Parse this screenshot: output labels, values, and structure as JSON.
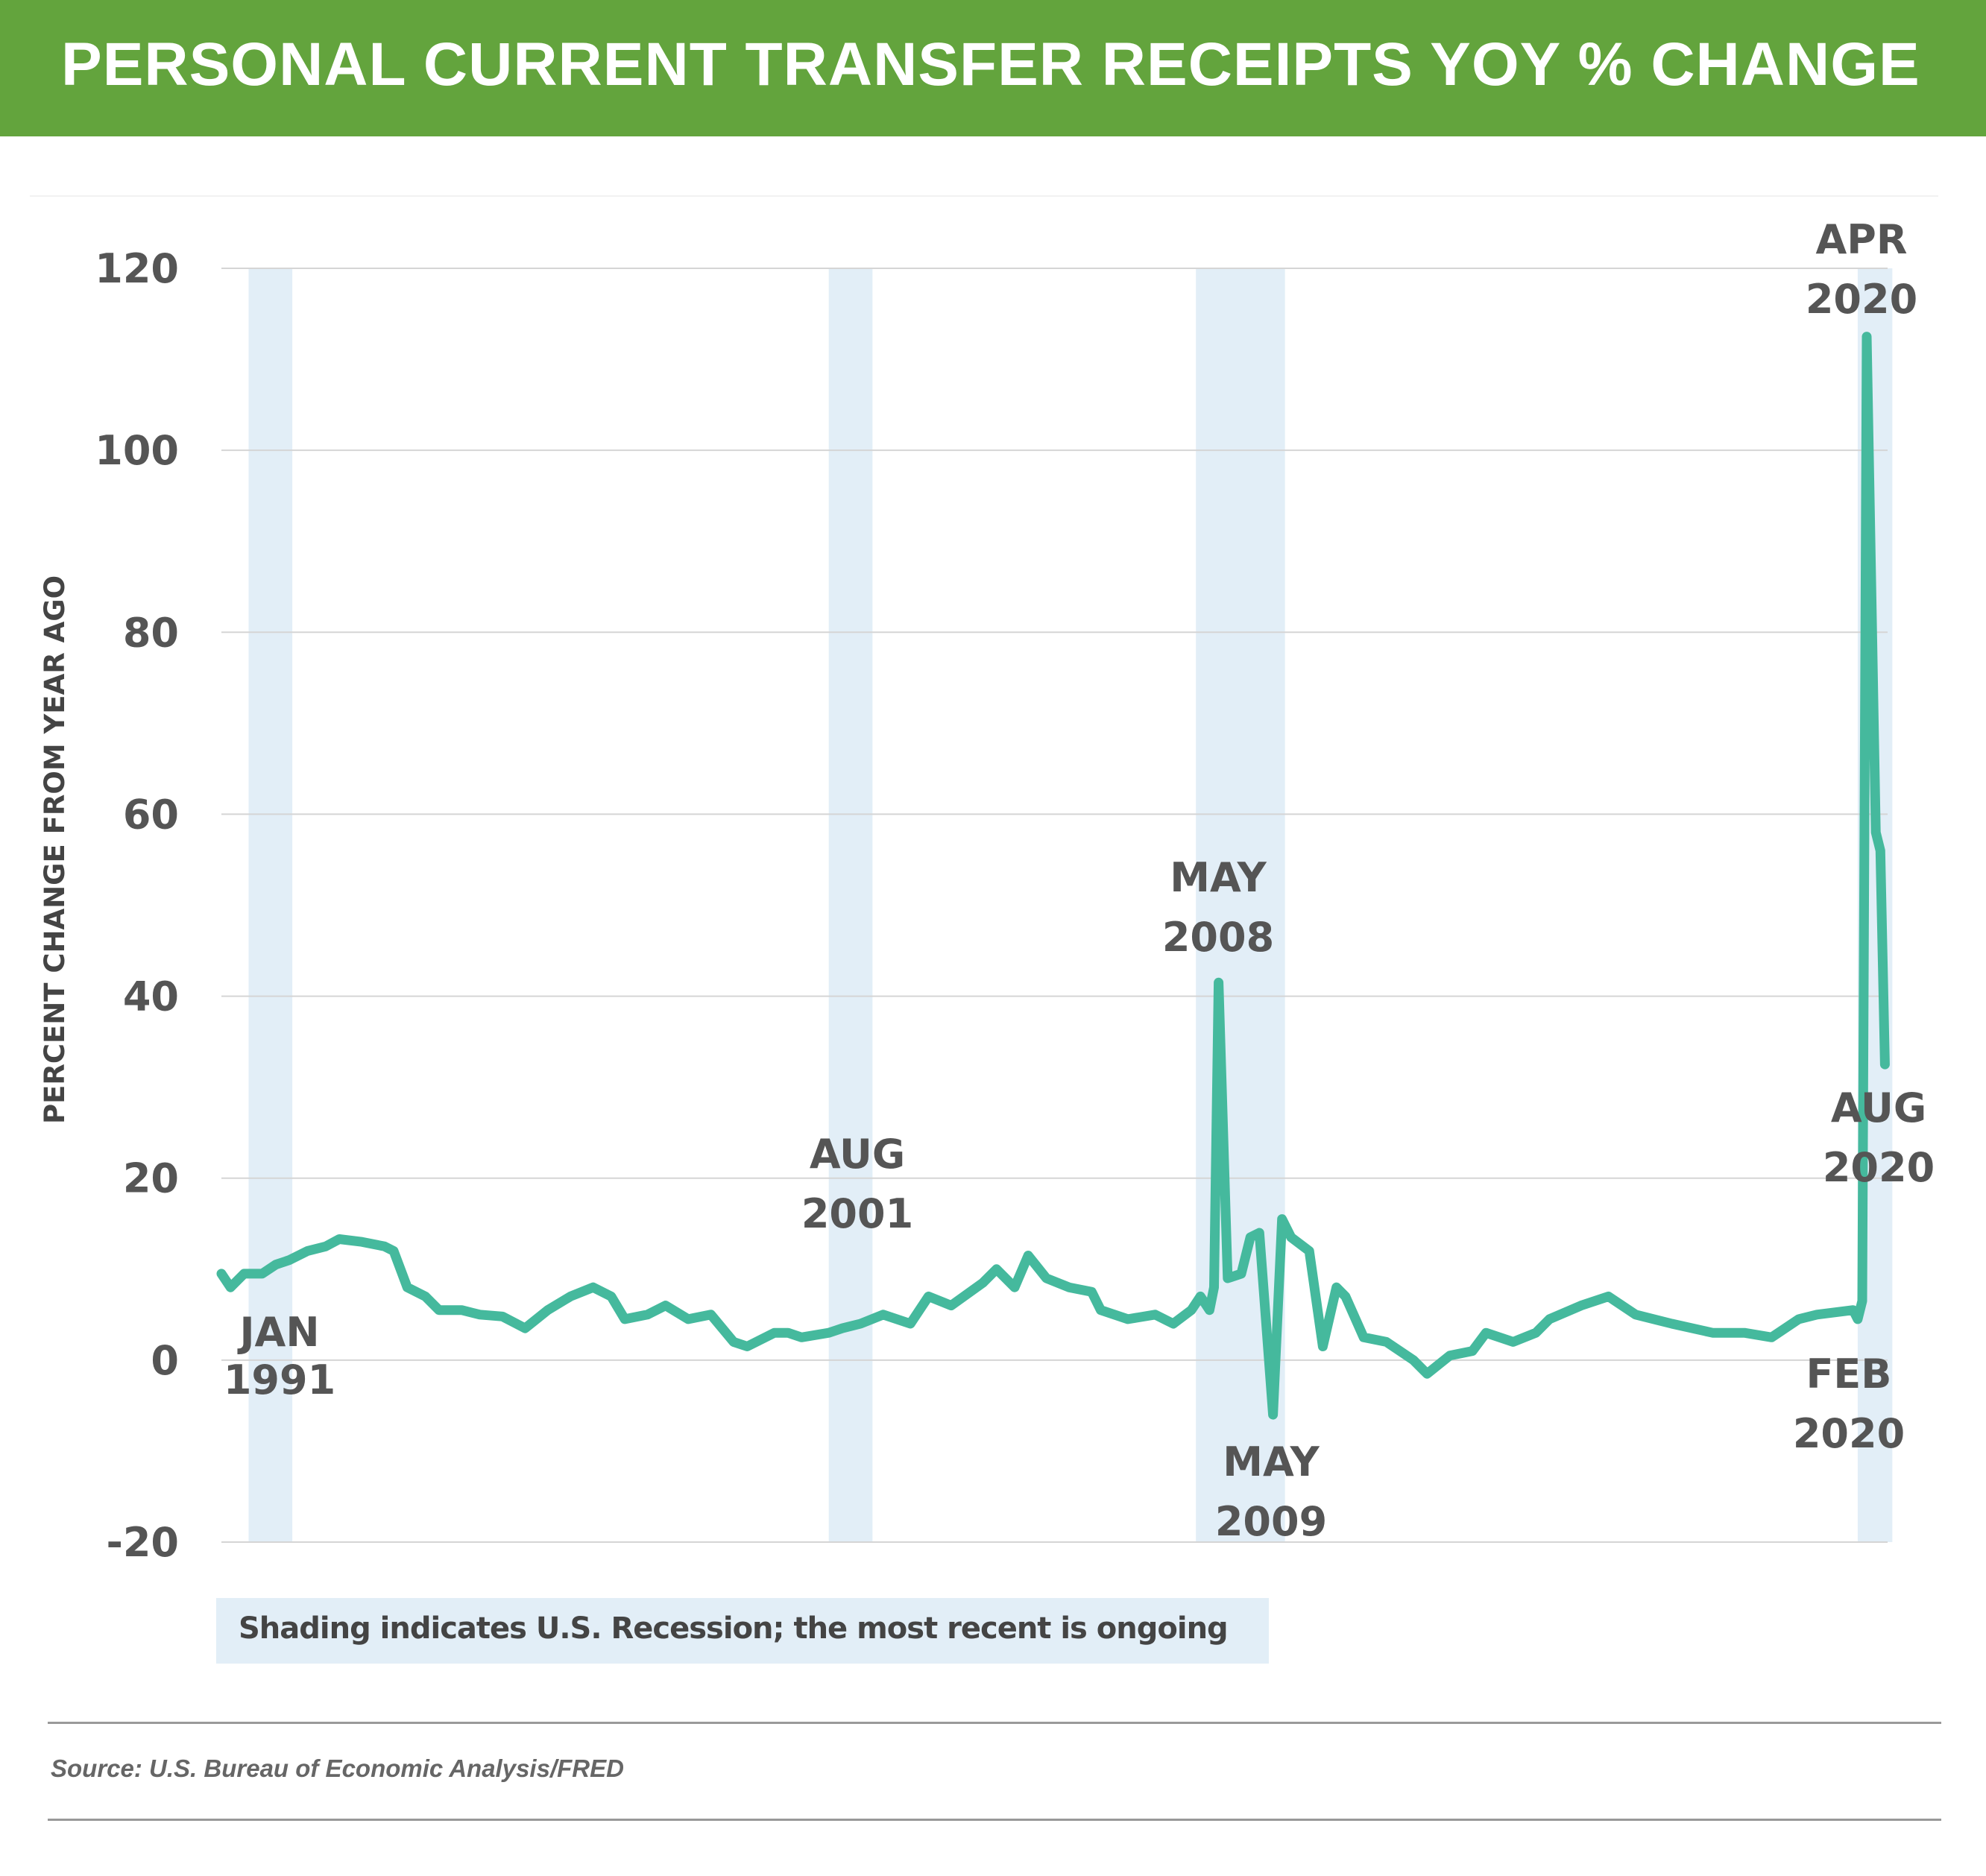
{
  "header": {
    "title": "PERSONAL CURRENT TRANSFER RECEIPTS YOY % CHANGE"
  },
  "chart_data": {
    "type": "line",
    "title": "PERSONAL CURRENT TRANSFER RECEIPTS YOY % CHANGE",
    "ylabel": "PERCENT CHANGE FROM YEAR AGO",
    "xlabel": "",
    "ylim": [
      -20,
      120
    ],
    "xlim": [
      "1990-01",
      "2020-08"
    ],
    "yticks": [
      "120",
      "100",
      "80",
      "60",
      "40",
      "20",
      "0",
      "-20"
    ],
    "grid": true,
    "line_color": "#45b99d",
    "recession_color": "#e2eef7",
    "recessions": [
      [
        "1990-07",
        "1991-03"
      ],
      [
        "2001-03",
        "2001-11"
      ],
      [
        "2007-12",
        "2009-06"
      ],
      [
        "2020-02",
        "2020-08"
      ]
    ],
    "series": [
      {
        "points": [
          [
            "1990-01",
            9.5
          ],
          [
            "1990-03",
            8
          ],
          [
            "1990-06",
            9.5
          ],
          [
            "1990-10",
            9.5
          ],
          [
            "1991-01",
            10.5
          ],
          [
            "1991-04",
            11
          ],
          [
            "1991-08",
            12
          ],
          [
            "1991-12",
            12.5
          ],
          [
            "1992-03",
            13.3
          ],
          [
            "1992-08",
            13
          ],
          [
            "1993-01",
            12.5
          ],
          [
            "1993-03",
            12
          ],
          [
            "1993-06",
            8
          ],
          [
            "1993-10",
            7
          ],
          [
            "1994-01",
            5.5
          ],
          [
            "1994-06",
            5.5
          ],
          [
            "1994-10",
            5
          ],
          [
            "1995-03",
            4.8
          ],
          [
            "1995-08",
            3.5
          ],
          [
            "1996-01",
            5.5
          ],
          [
            "1996-06",
            7
          ],
          [
            "1996-11",
            8
          ],
          [
            "1997-03",
            7
          ],
          [
            "1997-06",
            4.5
          ],
          [
            "1997-11",
            5
          ],
          [
            "1998-03",
            6
          ],
          [
            "1998-08",
            4.5
          ],
          [
            "1999-01",
            5
          ],
          [
            "1999-06",
            2
          ],
          [
            "1999-09",
            1.5
          ],
          [
            "2000-03",
            3
          ],
          [
            "2000-06",
            3
          ],
          [
            "2000-09",
            2.5
          ],
          [
            "2001-03",
            3
          ],
          [
            "2001-06",
            3.5
          ],
          [
            "2001-10",
            4
          ],
          [
            "2002-03",
            5
          ],
          [
            "2002-09",
            4
          ],
          [
            "2003-01",
            7
          ],
          [
            "2003-06",
            6
          ],
          [
            "2004-01",
            8.5
          ],
          [
            "2004-04",
            10
          ],
          [
            "2004-08",
            8
          ],
          [
            "2004-11",
            11.5
          ],
          [
            "2005-03",
            9
          ],
          [
            "2005-08",
            8
          ],
          [
            "2006-01",
            7.5
          ],
          [
            "2006-03",
            5.5
          ],
          [
            "2006-09",
            4.5
          ],
          [
            "2007-03",
            5
          ],
          [
            "2007-07",
            4
          ],
          [
            "2007-11",
            5.5
          ],
          [
            "2008-01",
            7
          ],
          [
            "2008-03",
            5.5
          ],
          [
            "2008-04",
            8
          ],
          [
            "2008-05",
            41.5
          ],
          [
            "2008-07",
            9
          ],
          [
            "2008-10",
            9.5
          ],
          [
            "2008-12",
            13.5
          ],
          [
            "2009-02",
            14
          ],
          [
            "2009-05",
            -6
          ],
          [
            "2009-07",
            15.5
          ],
          [
            "2009-09",
            13.5
          ],
          [
            "2010-01",
            12
          ],
          [
            "2010-04",
            1.5
          ],
          [
            "2010-07",
            8
          ],
          [
            "2010-09",
            7
          ],
          [
            "2011-01",
            2.5
          ],
          [
            "2011-06",
            2
          ],
          [
            "2011-12",
            0
          ],
          [
            "2012-03",
            -1.5
          ],
          [
            "2012-08",
            0.5
          ],
          [
            "2013-01",
            1
          ],
          [
            "2013-04",
            3
          ],
          [
            "2013-10",
            2
          ],
          [
            "2014-03",
            3
          ],
          [
            "2014-06",
            4.5
          ],
          [
            "2015-01",
            6
          ],
          [
            "2015-07",
            7
          ],
          [
            "2016-01",
            5
          ],
          [
            "2016-09",
            4
          ],
          [
            "2017-06",
            3
          ],
          [
            "2018-01",
            3
          ],
          [
            "2018-07",
            2.5
          ],
          [
            "2019-01",
            4.5
          ],
          [
            "2019-05",
            5
          ],
          [
            "2020-01",
            5.5
          ],
          [
            "2020-02",
            4.5
          ],
          [
            "2020-03",
            6.5
          ],
          [
            "2020-04",
            112.5
          ],
          [
            "2020-06",
            58
          ],
          [
            "2020-07",
            56
          ],
          [
            "2020-08",
            32.5
          ]
        ]
      }
    ],
    "annotations": [
      {
        "line1": "JAN",
        "line2": "1991"
      },
      {
        "line1": "AUG",
        "line2": "2001"
      },
      {
        "line1": "MAY",
        "line2": "2008"
      },
      {
        "line1": "MAY",
        "line2": "2009"
      },
      {
        "line1": "APR",
        "line2": "2020"
      },
      {
        "line1": "AUG",
        "line2": "2020"
      },
      {
        "line1": "FEB",
        "line2": "2020"
      }
    ]
  },
  "note": "Shading indicates U.S. Recession; the most recent is ongoing",
  "source": "Source: U.S. Bureau of Economic Analysis/FRED"
}
